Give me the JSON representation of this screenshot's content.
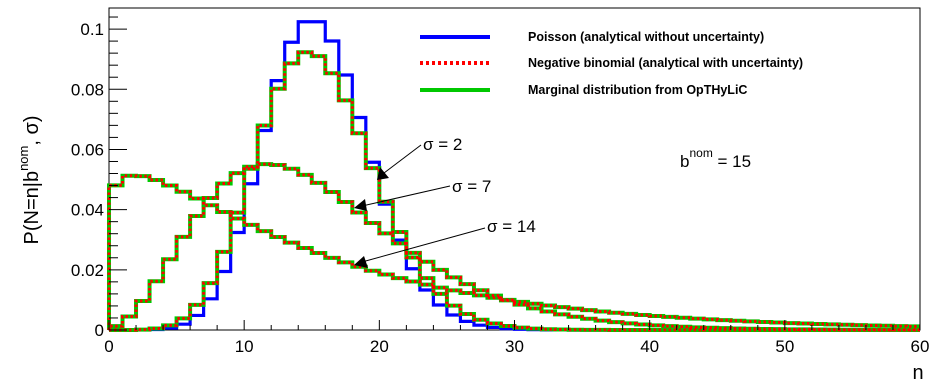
{
  "chart_data": {
    "type": "line",
    "title": "",
    "xlabel": "n",
    "ylabel": "P(N=n|b^nom, σ)",
    "ylabel_parts": {
      "pre": "P(N=n|b",
      "sup": "nom",
      "post": ", σ)"
    },
    "xlim": [
      0,
      60
    ],
    "ylim": [
      0,
      0.107
    ],
    "x_ticks": [
      0,
      10,
      20,
      30,
      40,
      50,
      60
    ],
    "y_ticks": [
      0,
      0.02,
      0.04,
      0.06,
      0.08,
      0.1
    ],
    "y_tick_labels": [
      "0",
      "0.02",
      "0.04",
      "0.06",
      "0.08",
      "0.1"
    ],
    "grid": false,
    "legend_position": "top-right",
    "b_nom": 15,
    "series": [
      {
        "name": "Poisson (analytical without uncertainty)",
        "color": "#0000ff",
        "style": "solid",
        "sigma": 0
      },
      {
        "name": "Negative binomial (analytical with uncertainty)",
        "color": "#ff0000",
        "style": "dotted",
        "sigma": [
          2,
          7,
          14
        ]
      },
      {
        "name": "Marginal distribution from OpTHyLiC",
        "color": "#00c800",
        "style": "solid",
        "sigma": [
          2,
          7,
          14
        ]
      }
    ],
    "annotations": [
      {
        "label": "σ = 2",
        "arrow_to": [
          18.8,
          0.044
        ]
      },
      {
        "label": "σ = 7",
        "arrow_to": [
          17.5,
          0.0335
        ]
      },
      {
        "label": "σ = 14",
        "arrow_to": [
          17.5,
          0.0215
        ]
      }
    ],
    "annotation_bnom": {
      "pre": "b",
      "sup": "nom",
      "post": " = 15"
    }
  }
}
